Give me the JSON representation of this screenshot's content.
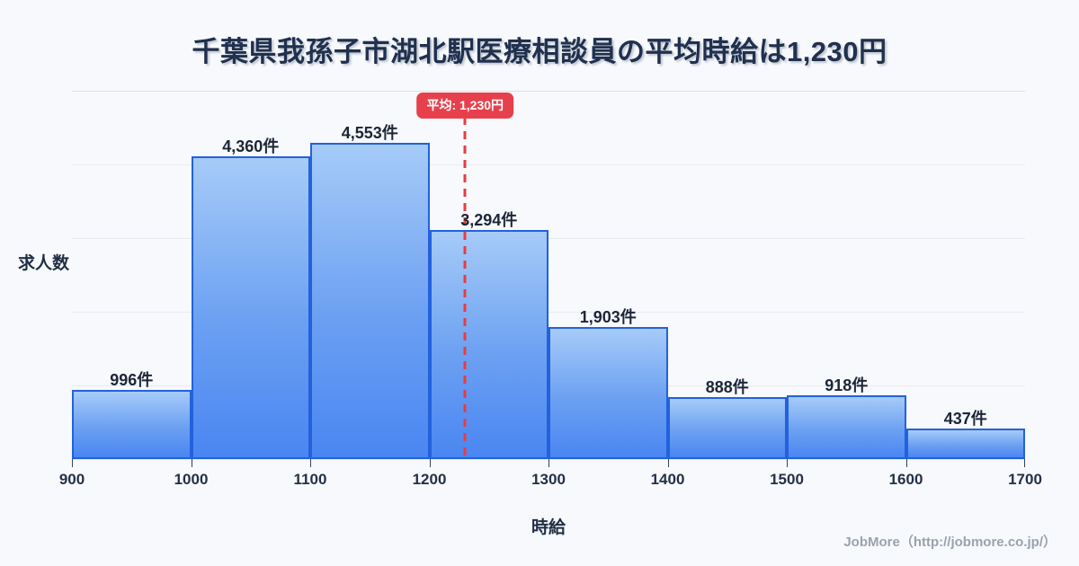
{
  "header": {
    "title": "千葉県我孫子市湖北駅医療相談員の平均時給は1,230円"
  },
  "chart_data": {
    "type": "bar",
    "title": "千葉県我孫子市湖北駅医療相談員の平均時給は1,230円",
    "xlabel": "時給",
    "ylabel": "求人数",
    "bin_edges": [
      900,
      1000,
      1100,
      1200,
      1300,
      1400,
      1500,
      1600,
      1700
    ],
    "categories": [
      "900-1000",
      "1000-1100",
      "1100-1200",
      "1200-1300",
      "1300-1400",
      "1400-1500",
      "1500-1600",
      "1600-1700"
    ],
    "values": [
      996,
      4360,
      4553,
      3294,
      1903,
      888,
      918,
      437
    ],
    "value_labels": [
      "996件",
      "4,360件",
      "4,553件",
      "3,294件",
      "1,903件",
      "888件",
      "918件",
      "437件"
    ],
    "x_ticks": [
      "900",
      "1000",
      "1100",
      "1200",
      "1300",
      "1400",
      "1500",
      "1600",
      "1700"
    ],
    "xlim": [
      900,
      1700
    ],
    "ylim": [
      0,
      5300
    ],
    "gridline_divisions": 5,
    "grid": true,
    "legend": false,
    "mean": {
      "value": 1230,
      "label": "平均: 1,230円"
    },
    "colors": {
      "bar_gradient_top": "#a6cbf8",
      "bar_gradient_bottom": "#4a86f2",
      "bar_border": "#2361dd",
      "mean_line": "#e53e43",
      "badge_bg": "#e7404d",
      "badge_text": "#ffffff",
      "background": "#f7f9fc",
      "title_text": "#20304e",
      "label_text": "#1c2638"
    }
  },
  "footer": {
    "credit": "JobMore（http://jobmore.co.jp/）"
  }
}
